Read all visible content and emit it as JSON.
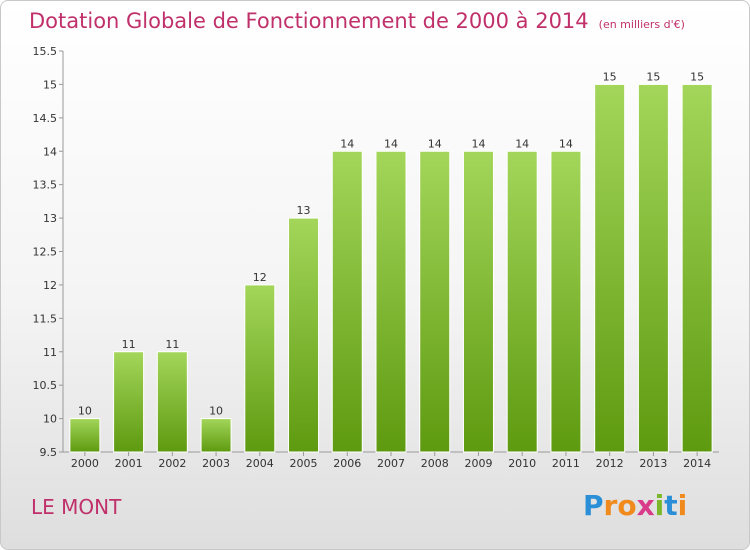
{
  "title": "Dotation Globale de Fonctionnement de 2000 à 2014",
  "subtitle": "(en milliers d'€)",
  "commune": "LE MONT",
  "logo": {
    "letters": [
      "P",
      "r",
      "o",
      "x",
      "i",
      "t",
      "i"
    ],
    "colors": [
      "#2a8fd6",
      "#f08a1c",
      "#f08a1c",
      "#d93a8a",
      "#7ab829",
      "#2a8fd6",
      "#f08a1c"
    ]
  },
  "colors": {
    "title": "#c0306a",
    "bar_top": "#a3d65a",
    "bar_bottom": "#5e9a10"
  },
  "chart_data": {
    "type": "bar",
    "categories": [
      "2000",
      "2001",
      "2002",
      "2003",
      "2004",
      "2005",
      "2006",
      "2007",
      "2008",
      "2009",
      "2010",
      "2011",
      "2012",
      "2013",
      "2014"
    ],
    "values": [
      10,
      11,
      11,
      10,
      12,
      13,
      14,
      14,
      14,
      14,
      14,
      14,
      15,
      15,
      15
    ],
    "value_labels": [
      "10",
      "11",
      "11",
      "10",
      "12",
      "13",
      "14",
      "14",
      "14",
      "14",
      "14",
      "14",
      "15",
      "15",
      "15"
    ],
    "ylim": [
      9.5,
      15.5
    ],
    "yticks": [
      "9.5",
      "10",
      "10.5",
      "11",
      "11.5",
      "12",
      "12.5",
      "13",
      "13.5",
      "14",
      "14.5",
      "15",
      "15.5"
    ],
    "ytick_values": [
      9.5,
      10,
      10.5,
      11,
      11.5,
      12,
      12.5,
      13,
      13.5,
      14,
      14.5,
      15,
      15.5
    ],
    "grid": false
  }
}
